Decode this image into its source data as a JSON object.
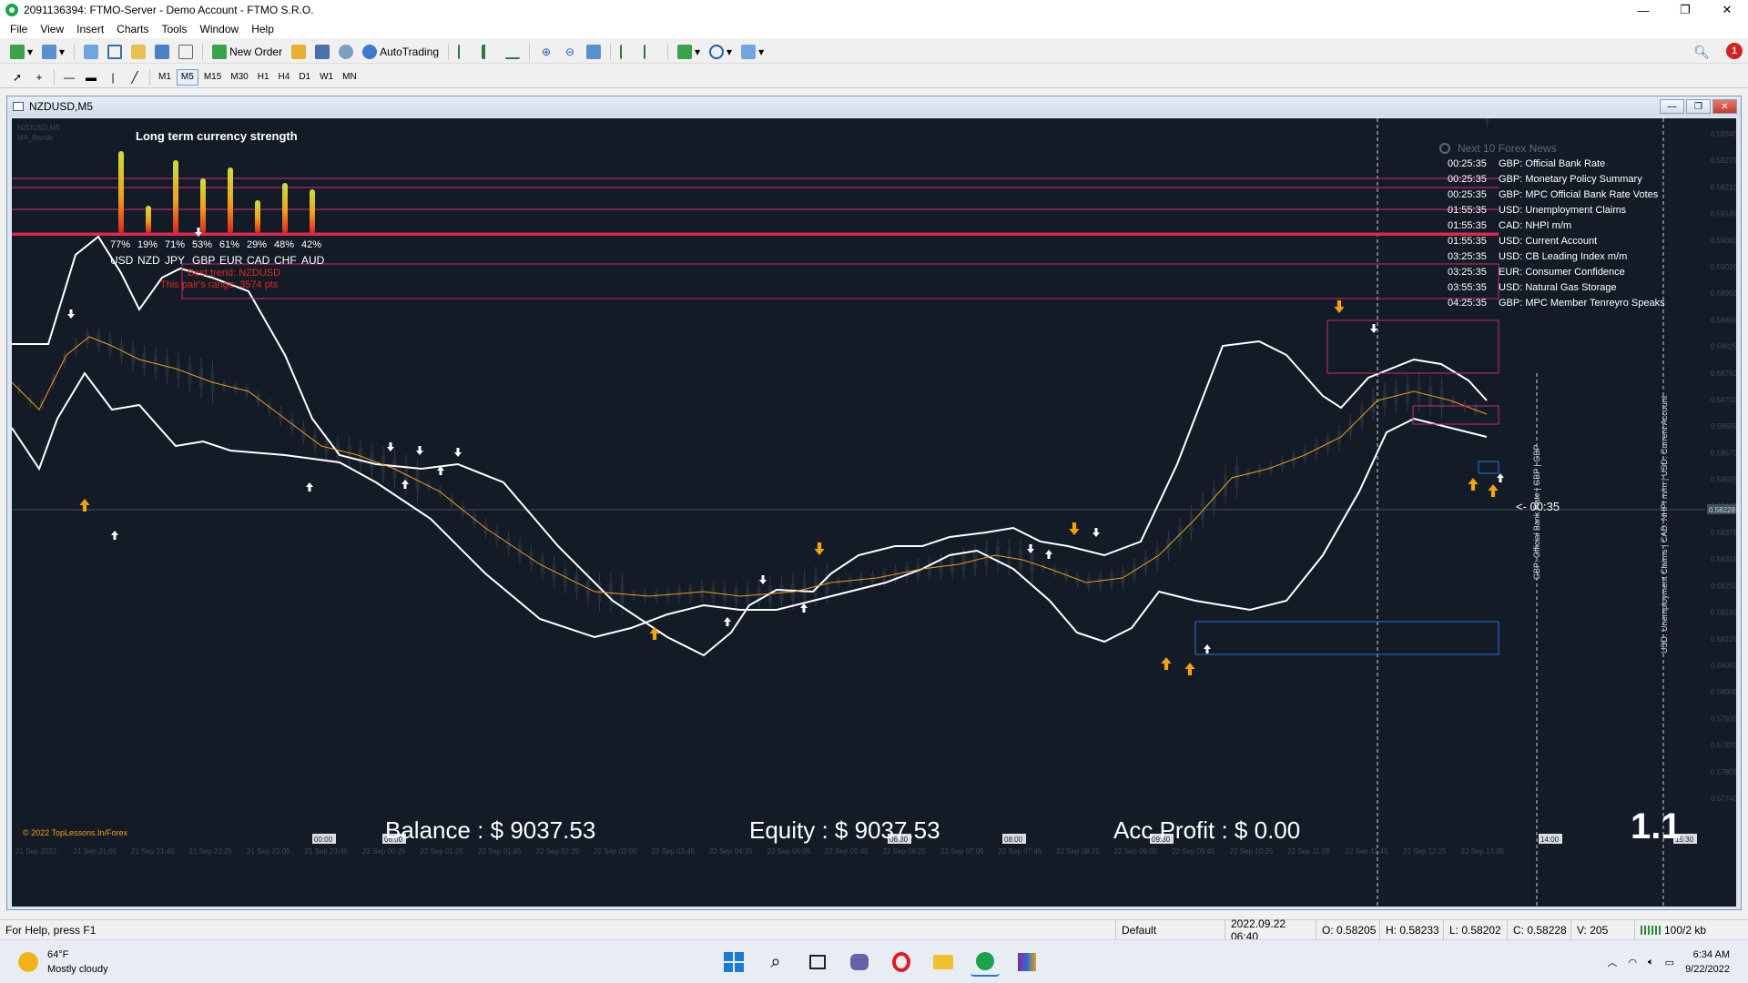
{
  "window": {
    "title": "2091136394: FTMO-Server - Demo Account - FTMO S.R.O.",
    "controls": [
      "—",
      "❐",
      "✕"
    ]
  },
  "menu": [
    "File",
    "View",
    "Insert",
    "Charts",
    "Tools",
    "Window",
    "Help"
  ],
  "toolbar": {
    "new_order": "New Order",
    "autotrading": "AutoTrading"
  },
  "timeframes": [
    "M1",
    "M5",
    "M15",
    "M30",
    "H1",
    "H4",
    "D1",
    "W1",
    "MN"
  ],
  "active_timeframe": "M5",
  "notification_count": "1",
  "chart": {
    "title": "NZDUSD,M5",
    "small_label_1": "NZDUSD,M5",
    "small_label_2": "MA_Bands",
    "strength": {
      "title": "Long term currency strength",
      "percents": [
        "77%",
        "19%",
        "71%",
        "53%",
        "61%",
        "29%",
        "48%",
        "42%"
      ],
      "currencies": [
        "USD",
        "NZD",
        "JPY",
        "GBP",
        "EUR",
        "CAD",
        "CHF",
        "AUD"
      ],
      "best_trend": "Best trend: NZDUSD",
      "range": "This pair's range: 3574 pts"
    },
    "news": {
      "header": "Next 10 Forex News",
      "items": [
        {
          "time": "00:25:35",
          "text": "GBP: Official Bank Rate"
        },
        {
          "time": "00:25:35",
          "text": "GBP: Monetary Policy Summary"
        },
        {
          "time": "00:25:35",
          "text": "GBP: MPC Official Bank Rate Votes"
        },
        {
          "time": "01:55:35",
          "text": "USD: Unemployment Claims"
        },
        {
          "time": "01:55:35",
          "text": "CAD: NHPI m/m"
        },
        {
          "time": "01:55:35",
          "text": "USD: Current Account"
        },
        {
          "time": "03:25:35",
          "text": "USD: CB Leading Index m/m"
        },
        {
          "time": "03:25:35",
          "text": "EUR: Consumer Confidence"
        },
        {
          "time": "03:55:35",
          "text": "USD: Natural Gas Storage"
        },
        {
          "time": "04:25:35",
          "text": "GBP: MPC Member Tenreyro Speaks"
        }
      ]
    },
    "countdown": "<- 00:35",
    "vertical_label_1": "GBP: Official Bank Rate | GBP | GBP",
    "vertical_label_2": "USD: Unemployment Claims | CAD: NHPI m/m | USD: Current Account",
    "balance": "Balance : $ 9037.53",
    "equity": "Equity : $ 9037.53",
    "acc_profit": "Acc Profit : $ 0.00",
    "big_number": "1.1",
    "copyright": "© 2022 TopLessons.In/Forex",
    "time_markers": [
      "00:00",
      "06:00",
      "06:30",
      "08:00",
      "09:30",
      "14:00",
      "15:30"
    ],
    "price_labels": [
      "0.59340",
      "0.59275",
      "0.59210",
      "0.59145",
      "0.59080",
      "0.59015",
      "0.58950",
      "0.58890",
      "0.58825",
      "0.58760",
      "0.58700",
      "0.58635",
      "0.58570",
      "0.58505",
      "0.58440",
      "0.58375",
      "0.58315",
      "0.58250",
      "0.58190",
      "0.58125",
      "0.58065",
      "0.58000",
      "0.57935",
      "0.57870",
      "0.57805",
      "0.57740"
    ],
    "current_price": "0.58228",
    "date_labels": [
      "21 Sep 2022",
      "21 Sep 21:05",
      "21 Sep 21:45",
      "21 Sep 22:25",
      "21 Sep 23:05",
      "21 Sep 23:45",
      "22 Sep 00:25",
      "22 Sep 01:05",
      "22 Sep 01:45",
      "22 Sep 02:25",
      "22 Sep 03:05",
      "22 Sep 03:45",
      "22 Sep 04:25",
      "22 Sep 05:05",
      "22 Sep 05:45",
      "22 Sep 06:25",
      "22 Sep 07:05",
      "22 Sep 07:45",
      "22 Sep 08:25",
      "22 Sep 09:05",
      "22 Sep 09:45",
      "22 Sep 10:25",
      "22 Sep 11:05",
      "22 Sep 11:45",
      "22 Sep 12:25",
      "22 Sep 13:05"
    ]
  },
  "status": {
    "help": "For Help, press F1",
    "profile": "Default",
    "datetime": "2022.09.22 06:40",
    "open": "O: 0.58205",
    "high": "H: 0.58233",
    "low": "L: 0.58202",
    "close": "C: 0.58228",
    "volume": "V: 205",
    "traffic": "100/2 kb"
  },
  "taskbar": {
    "temp": "64°F",
    "weather": "Mostly cloudy",
    "time": "6:34 AM",
    "date": "9/22/2022"
  },
  "colors": {
    "chart_bg": "#131c26",
    "band": "#ffffff",
    "ma": "#f29a1a",
    "box_magenta": "#c8287a",
    "box_blue": "#2a6fd6",
    "arrow_orange": "#f5a00f"
  }
}
